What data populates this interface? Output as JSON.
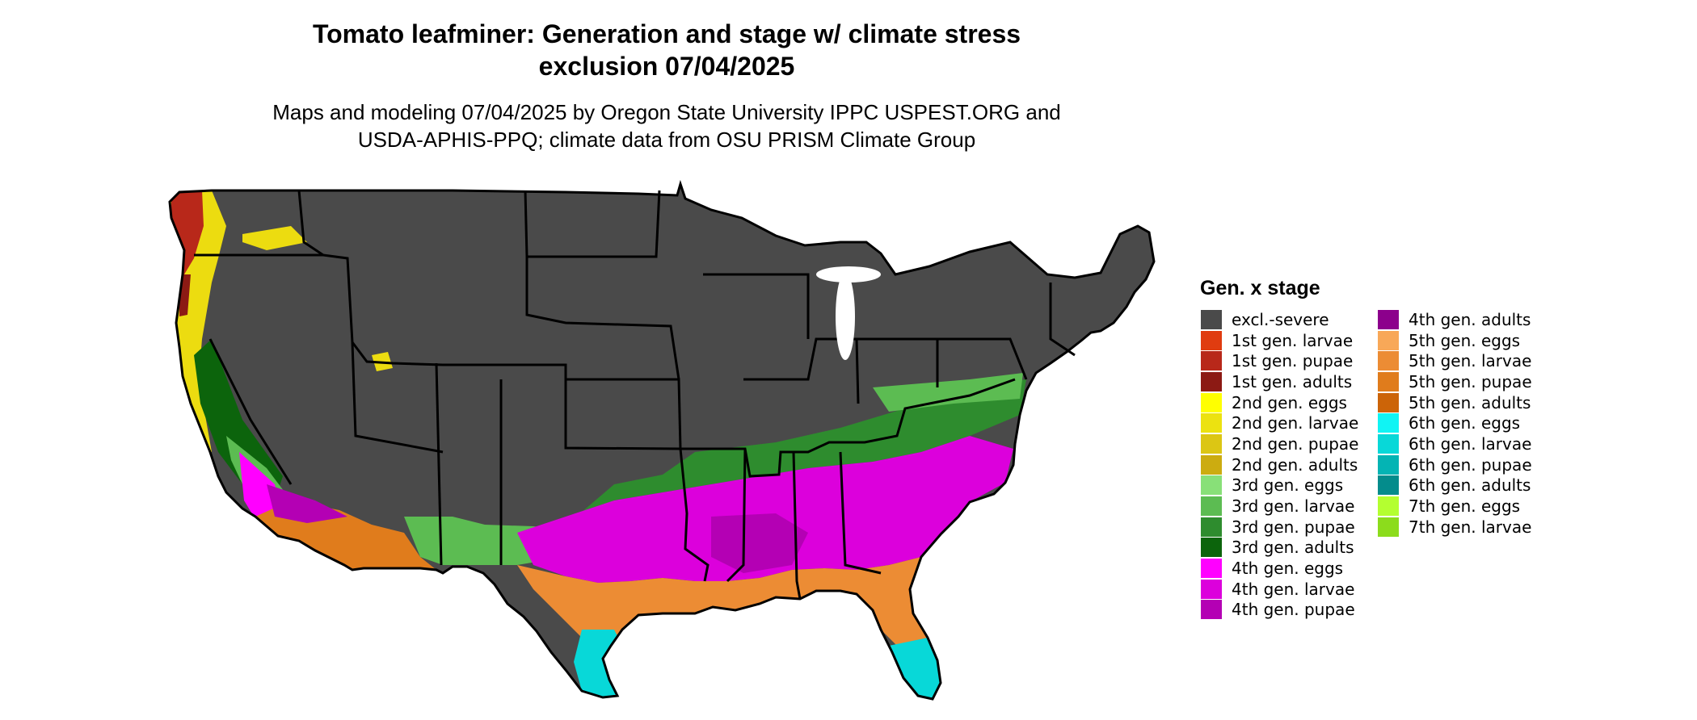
{
  "map": {
    "title_line1": "Tomato leafminer: Generation and stage w/ climate stress",
    "title_line2": "exclusion 07/04/2025",
    "subtitle_line1": "Maps and modeling 07/04/2025 by Oregon State University IPPC USPEST.ORG and",
    "subtitle_line2": "USDA-APHIS-PPQ; climate data from OSU PRISM Climate Group"
  },
  "legend": {
    "title": "Gen. x stage",
    "items": [
      {
        "label": "excl.-severe",
        "color": "#4a4a4a"
      },
      {
        "label": "1st gen. larvae",
        "color": "#e03c10"
      },
      {
        "label": "1st gen. pupae",
        "color": "#b8281a"
      },
      {
        "label": "1st gen. adults",
        "color": "#8c1a14"
      },
      {
        "label": "2nd gen. eggs",
        "color": "#ffff00"
      },
      {
        "label": "2nd gen. larvae",
        "color": "#ece210"
      },
      {
        "label": "2nd gen. pupae",
        "color": "#dcc614"
      },
      {
        "label": "2nd gen. adults",
        "color": "#ccac10"
      },
      {
        "label": "3rd gen. eggs",
        "color": "#88e078"
      },
      {
        "label": "3rd gen. larvae",
        "color": "#5cbc52"
      },
      {
        "label": "3rd gen. pupae",
        "color": "#2e8c2e"
      },
      {
        "label": "3rd gen. adults",
        "color": "#0c640c"
      },
      {
        "label": "4th gen. eggs",
        "color": "#ff00ff"
      },
      {
        "label": "4th gen. larvae",
        "color": "#dc00dc"
      },
      {
        "label": "4th gen. pupae",
        "color": "#b400b4"
      },
      {
        "label": "4th gen. adults",
        "color": "#8c008c"
      },
      {
        "label": "5th gen. eggs",
        "color": "#f8a858"
      },
      {
        "label": "5th gen. larvae",
        "color": "#ec8c34"
      },
      {
        "label": "5th gen. pupae",
        "color": "#e07c1c"
      },
      {
        "label": "5th gen. adults",
        "color": "#cc6408"
      },
      {
        "label": "6th gen. eggs",
        "color": "#10f4f4"
      },
      {
        "label": "6th gen. larvae",
        "color": "#08d8d8"
      },
      {
        "label": "6th gen. pupae",
        "color": "#04b4b4"
      },
      {
        "label": "6th gen. adults",
        "color": "#048c8c"
      },
      {
        "label": "7th gen. eggs",
        "color": "#b4ff30"
      },
      {
        "label": "7th gen. larvae",
        "color": "#8cdc1c"
      }
    ]
  }
}
